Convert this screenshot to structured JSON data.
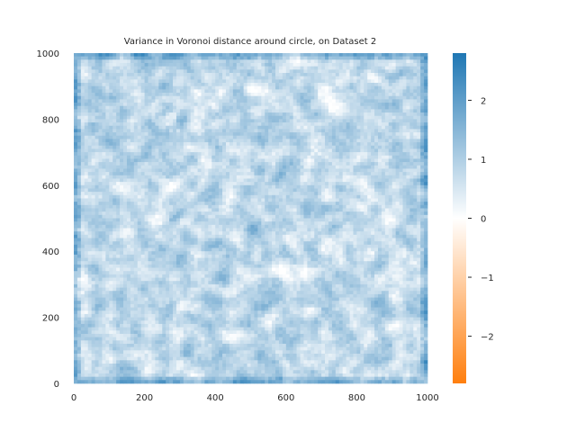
{
  "chart_data": {
    "type": "heatmap",
    "title": "Variance in Voronoi distance around circle, on Dataset 2",
    "xlabel": "",
    "ylabel": "",
    "xlim": [
      0,
      1000
    ],
    "ylim": [
      0,
      1000
    ],
    "grid_resolution": 100,
    "x_tick_labels": [
      "0",
      "200",
      "400",
      "600",
      "800",
      "1000"
    ],
    "y_tick_labels": [
      "0",
      "200",
      "400",
      "600",
      "800",
      "1000"
    ],
    "x_ticks": [
      0,
      200,
      400,
      600,
      800,
      1000
    ],
    "y_ticks": [
      0,
      200,
      400,
      600,
      800,
      1000
    ],
    "value_range": [
      0.0,
      2.5
    ],
    "value_description": "mostly light-blue cells with darker blue streaks; edges of the square are darker blue",
    "colorbar": {
      "vmin": -2.8,
      "vmax": 2.8,
      "ticks": [
        2,
        1,
        0,
        -1,
        -2
      ],
      "tick_labels": [
        "2",
        "1",
        "0",
        "−1",
        "−2"
      ],
      "colors": {
        "negative": "#ff7f0e",
        "zero": "#ffffff",
        "positive": "#1f77b4"
      }
    }
  }
}
